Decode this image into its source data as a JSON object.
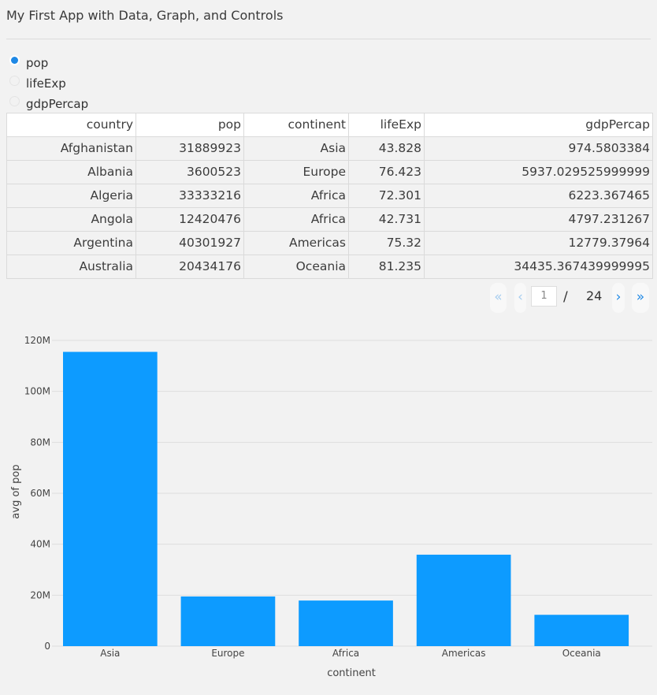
{
  "app": {
    "title": "My First App with Data, Graph, and Controls"
  },
  "controls": {
    "options": [
      "pop",
      "lifeExp",
      "gdpPercap"
    ],
    "selected": "pop"
  },
  "table": {
    "columns": [
      "country",
      "pop",
      "continent",
      "lifeExp",
      "gdpPercap"
    ],
    "rows": [
      [
        "Afghanistan",
        "31889923",
        "Asia",
        "43.828",
        "974.5803384"
      ],
      [
        "Albania",
        "3600523",
        "Europe",
        "76.423",
        "5937.029525999999"
      ],
      [
        "Algeria",
        "33333216",
        "Africa",
        "72.301",
        "6223.367465"
      ],
      [
        "Angola",
        "12420476",
        "Africa",
        "42.731",
        "4797.231267"
      ],
      [
        "Argentina",
        "40301927",
        "Americas",
        "75.32",
        "12779.37964"
      ],
      [
        "Australia",
        "20434176",
        "Oceania",
        "81.235",
        "34435.367439999995"
      ]
    ]
  },
  "pagination": {
    "first": "«",
    "prev": "‹",
    "next": "›",
    "last": "»",
    "current_page": "1",
    "separator": "/",
    "total_pages": "24"
  },
  "colors": {
    "bar": "#0d9bff",
    "accent": "#1e88e5"
  },
  "chart_data": {
    "type": "bar",
    "categories": [
      "Asia",
      "Europe",
      "Africa",
      "Americas",
      "Oceania"
    ],
    "values": [
      115500000,
      19500000,
      17900000,
      35900000,
      12300000
    ],
    "ylabel": "avg of pop",
    "xlabel": "continent",
    "ylim": [
      0,
      120000000
    ],
    "yticks": [
      0,
      20000000,
      40000000,
      60000000,
      80000000,
      100000000,
      120000000
    ],
    "ytick_labels": [
      "0",
      "20M",
      "40M",
      "60M",
      "80M",
      "100M",
      "120M"
    ],
    "grid": true
  }
}
